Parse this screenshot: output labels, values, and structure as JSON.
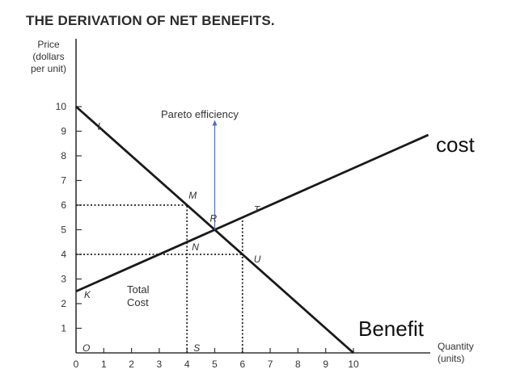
{
  "chart_data": {
    "type": "line",
    "title": "THE DERIVATION OF NET BENEFITS.",
    "ylabel": [
      "Price",
      "(dollars",
      "per unit)"
    ],
    "xlabel": [
      "Quantity",
      "(units)"
    ],
    "xlim": [
      0,
      10
    ],
    "ylim": [
      0,
      10
    ],
    "x_ticks": [
      0,
      1,
      2,
      3,
      4,
      5,
      6,
      7,
      8,
      9,
      10
    ],
    "y_ticks": [
      1,
      2,
      3,
      4,
      5,
      6,
      7,
      8,
      9,
      10
    ],
    "grid": false,
    "series": [
      {
        "name": "cost",
        "x": [
          0,
          10
        ],
        "y": [
          2.5,
          7.5
        ],
        "color": "#1a1a1a"
      },
      {
        "name": "Benefit",
        "x": [
          0,
          10
        ],
        "y": [
          10,
          0
        ],
        "color": "#1a1a1a"
      }
    ],
    "points": [
      {
        "label": "L",
        "x": 0.6,
        "y": 9.0
      },
      {
        "label": "M",
        "x": 4.0,
        "y": 6.0
      },
      {
        "label": "R",
        "x": 5.0,
        "y": 5.0
      },
      {
        "label": "T",
        "x": 6.0,
        "y": 5.5
      },
      {
        "label": "N",
        "x": 4.0,
        "y": 4.5
      },
      {
        "label": "U",
        "x": 6.0,
        "y": 4.0
      },
      {
        "label": "K",
        "x": 0.0,
        "y": 2.5
      },
      {
        "label": "O",
        "x": 0.0,
        "y": 0.0
      },
      {
        "label": "S",
        "x": 4.0,
        "y": 0.0
      }
    ],
    "annotations": {
      "total_cost": [
        "Total",
        "Cost"
      ],
      "pareto": "Pareto efficiency",
      "cost_label": "cost",
      "benefit_label": "Benefit"
    },
    "arrow": {
      "from": [
        5.0,
        5.0
      ],
      "to": [
        5.0,
        9.0
      ],
      "color": "#4f6fbf"
    },
    "dotted_lines": [
      {
        "from": [
          0,
          6
        ],
        "to": [
          4,
          6
        ]
      },
      {
        "from": [
          0,
          4
        ],
        "to": [
          6,
          4
        ]
      },
      {
        "from": [
          4,
          0
        ],
        "to": [
          4,
          6
        ]
      },
      {
        "from": [
          6,
          0
        ],
        "to": [
          6,
          5.5
        ]
      }
    ]
  }
}
